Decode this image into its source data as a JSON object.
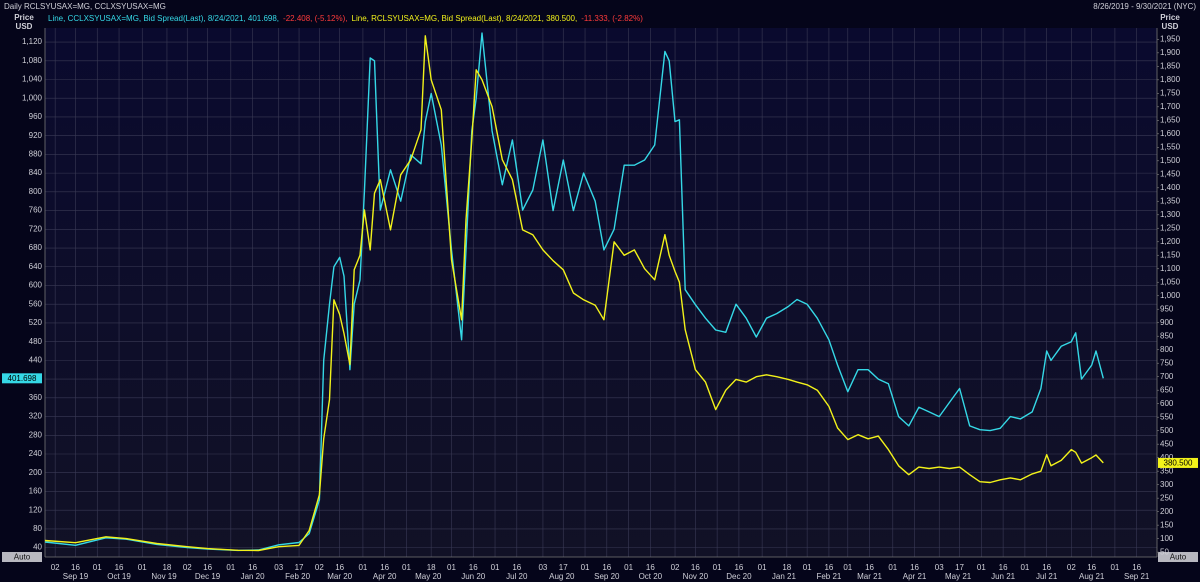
{
  "chart_data": {
    "type": "line",
    "title": "Daily RCLSYUSAX=MG, CCLXSYUSAX=MG",
    "subtitle": "8/26/2019 - 9/30/2021 (NYC)",
    "ylabel": [
      "Price",
      "USD"
    ],
    "y2label": [
      "Price",
      "USD"
    ],
    "scale_mode": [
      "Auto",
      "Auto"
    ],
    "grid": true,
    "xlim": [
      "2019-08-26",
      "2021-09-30"
    ],
    "ylim": [
      20,
      1150
    ],
    "y2lim": [
      32,
      1992
    ],
    "yticks": [
      40,
      80,
      120,
      160,
      200,
      240,
      280,
      320,
      360,
      400,
      440,
      480,
      520,
      560,
      600,
      640,
      680,
      720,
      760,
      800,
      840,
      880,
      920,
      960,
      {
        "value": 1000,
        "label": "1,000"
      },
      {
        "value": 1040,
        "label": "1,040"
      },
      {
        "value": 1080,
        "label": "1,080"
      },
      {
        "value": 1120,
        "label": "1,120"
      }
    ],
    "y2ticks": [
      50,
      100,
      150,
      200,
      250,
      300,
      350,
      400,
      450,
      500,
      550,
      600,
      650,
      700,
      750,
      800,
      850,
      900,
      950,
      {
        "value": 1000,
        "label": "1,000"
      },
      {
        "value": 1050,
        "label": "1,050"
      },
      {
        "value": 1100,
        "label": "1,100"
      },
      {
        "value": 1150,
        "label": "1,150"
      },
      {
        "value": 1200,
        "label": "1,200"
      },
      {
        "value": 1250,
        "label": "1,250"
      },
      {
        "value": 1300,
        "label": "1,300"
      },
      {
        "value": 1350,
        "label": "1,350"
      },
      {
        "value": 1400,
        "label": "1,400"
      },
      {
        "value": 1450,
        "label": "1,450"
      },
      {
        "value": 1500,
        "label": "1,500"
      },
      {
        "value": 1550,
        "label": "1,550"
      },
      {
        "value": 1600,
        "label": "1,600"
      },
      {
        "value": 1650,
        "label": "1,650"
      },
      {
        "value": 1700,
        "label": "1,700"
      },
      {
        "value": 1750,
        "label": "1,750"
      },
      {
        "value": 1800,
        "label": "1,800"
      },
      {
        "value": 1850,
        "label": "1,850"
      },
      {
        "value": 1900,
        "label": "1,900"
      },
      {
        "value": 1950,
        "label": "1,950"
      }
    ],
    "xticks": [
      {
        "value": "2019-09-02",
        "label": "02"
      },
      {
        "value": "2019-09-16",
        "label": "16"
      },
      {
        "value": "2019-10-01",
        "label": "01"
      },
      {
        "value": "2019-10-16",
        "label": "16"
      },
      {
        "value": "2019-11-01",
        "label": "01"
      },
      {
        "value": "2019-11-18",
        "label": "18"
      },
      {
        "value": "2019-12-02",
        "label": "02"
      },
      {
        "value": "2019-12-16",
        "label": "16"
      },
      {
        "value": "2020-01-01",
        "label": "01"
      },
      {
        "value": "2020-01-16",
        "label": "16"
      },
      {
        "value": "2020-02-03",
        "label": "03"
      },
      {
        "value": "2020-02-17",
        "label": "17"
      },
      {
        "value": "2020-03-02",
        "label": "02"
      },
      {
        "value": "2020-03-16",
        "label": "16"
      },
      {
        "value": "2020-04-01",
        "label": "01"
      },
      {
        "value": "2020-04-16",
        "label": "16"
      },
      {
        "value": "2020-05-01",
        "label": "01"
      },
      {
        "value": "2020-05-18",
        "label": "18"
      },
      {
        "value": "2020-06-01",
        "label": "01"
      },
      {
        "value": "2020-06-16",
        "label": "16"
      },
      {
        "value": "2020-07-01",
        "label": "01"
      },
      {
        "value": "2020-07-16",
        "label": "16"
      },
      {
        "value": "2020-08-03",
        "label": "03"
      },
      {
        "value": "2020-08-17",
        "label": "17"
      },
      {
        "value": "2020-09-01",
        "label": "01"
      },
      {
        "value": "2020-09-16",
        "label": "16"
      },
      {
        "value": "2020-10-01",
        "label": "01"
      },
      {
        "value": "2020-10-16",
        "label": "16"
      },
      {
        "value": "2020-11-02",
        "label": "02"
      },
      {
        "value": "2020-11-16",
        "label": "16"
      },
      {
        "value": "2020-12-01",
        "label": "01"
      },
      {
        "value": "2020-12-16",
        "label": "16"
      },
      {
        "value": "2021-01-01",
        "label": "01"
      },
      {
        "value": "2021-01-18",
        "label": "18"
      },
      {
        "value": "2021-02-01",
        "label": "01"
      },
      {
        "value": "2021-02-16",
        "label": "16"
      },
      {
        "value": "2021-03-01",
        "label": "01"
      },
      {
        "value": "2021-03-16",
        "label": "16"
      },
      {
        "value": "2021-04-01",
        "label": "01"
      },
      {
        "value": "2021-04-16",
        "label": "16"
      },
      {
        "value": "2021-05-03",
        "label": "03"
      },
      {
        "value": "2021-05-17",
        "label": "17"
      },
      {
        "value": "2021-06-01",
        "label": "01"
      },
      {
        "value": "2021-06-16",
        "label": "16"
      },
      {
        "value": "2021-07-01",
        "label": "01"
      },
      {
        "value": "2021-07-16",
        "label": "16"
      },
      {
        "value": "2021-08-02",
        "label": "02"
      },
      {
        "value": "2021-08-16",
        "label": "16"
      },
      {
        "value": "2021-09-01",
        "label": "01"
      },
      {
        "value": "2021-09-16",
        "label": "16"
      }
    ],
    "xmonths": [
      {
        "value": "2019-09-16",
        "label": "Sep 19"
      },
      {
        "value": "2019-10-16",
        "label": "Oct 19"
      },
      {
        "value": "2019-11-16",
        "label": "Nov 19"
      },
      {
        "value": "2019-12-16",
        "label": "Dec 19"
      },
      {
        "value": "2020-01-16",
        "label": "Jan 20"
      },
      {
        "value": "2020-02-16",
        "label": "Feb 20"
      },
      {
        "value": "2020-03-16",
        "label": "Mar 20"
      },
      {
        "value": "2020-04-16",
        "label": "Apr 20"
      },
      {
        "value": "2020-05-16",
        "label": "May 20"
      },
      {
        "value": "2020-06-16",
        "label": "Jun 20"
      },
      {
        "value": "2020-07-16",
        "label": "Jul 20"
      },
      {
        "value": "2020-08-16",
        "label": "Aug 20"
      },
      {
        "value": "2020-09-16",
        "label": "Sep 20"
      },
      {
        "value": "2020-10-16",
        "label": "Oct 20"
      },
      {
        "value": "2020-11-16",
        "label": "Nov 20"
      },
      {
        "value": "2020-12-16",
        "label": "Dec 20"
      },
      {
        "value": "2021-01-16",
        "label": "Jan 21"
      },
      {
        "value": "2021-02-16",
        "label": "Feb 21"
      },
      {
        "value": "2021-03-16",
        "label": "Mar 21"
      },
      {
        "value": "2021-04-16",
        "label": "Apr 21"
      },
      {
        "value": "2021-05-16",
        "label": "May 21"
      },
      {
        "value": "2021-06-16",
        "label": "Jun 21"
      },
      {
        "value": "2021-07-16",
        "label": "Jul 21"
      },
      {
        "value": "2021-08-16",
        "label": "Aug 21"
      },
      {
        "value": "2021-09-16",
        "label": "Sep 21"
      }
    ],
    "x": [
      "2019-08-26",
      "2019-09-16",
      "2019-10-07",
      "2019-10-21",
      "2019-11-11",
      "2019-12-02",
      "2019-12-16",
      "2020-01-06",
      "2020-01-20",
      "2020-02-03",
      "2020-02-17",
      "2020-02-24",
      "2020-03-02",
      "2020-03-05",
      "2020-03-09",
      "2020-03-12",
      "2020-03-16",
      "2020-03-19",
      "2020-03-23",
      "2020-03-26",
      "2020-03-30",
      "2020-04-02",
      "2020-04-06",
      "2020-04-09",
      "2020-04-13",
      "2020-04-20",
      "2020-04-27",
      "2020-05-04",
      "2020-05-11",
      "2020-05-14",
      "2020-05-18",
      "2020-05-25",
      "2020-06-01",
      "2020-06-08",
      "2020-06-11",
      "2020-06-15",
      "2020-06-18",
      "2020-06-22",
      "2020-06-29",
      "2020-07-06",
      "2020-07-13",
      "2020-07-20",
      "2020-07-27",
      "2020-08-03",
      "2020-08-10",
      "2020-08-17",
      "2020-08-24",
      "2020-08-31",
      "2020-09-08",
      "2020-09-14",
      "2020-09-21",
      "2020-09-28",
      "2020-10-05",
      "2020-10-12",
      "2020-10-19",
      "2020-10-26",
      "2020-10-29",
      "2020-11-02",
      "2020-11-05",
      "2020-11-09",
      "2020-11-16",
      "2020-11-23",
      "2020-11-30",
      "2020-12-07",
      "2020-12-14",
      "2020-12-21",
      "2020-12-28",
      "2021-01-04",
      "2021-01-11",
      "2021-01-19",
      "2021-01-25",
      "2021-02-01",
      "2021-02-08",
      "2021-02-16",
      "2021-02-22",
      "2021-03-01",
      "2021-03-08",
      "2021-03-15",
      "2021-03-22",
      "2021-03-29",
      "2021-04-05",
      "2021-04-12",
      "2021-04-19",
      "2021-04-26",
      "2021-05-03",
      "2021-05-10",
      "2021-05-17",
      "2021-05-24",
      "2021-05-31",
      "2021-06-07",
      "2021-06-14",
      "2021-06-21",
      "2021-06-28",
      "2021-07-06",
      "2021-07-12",
      "2021-07-16",
      "2021-07-19",
      "2021-07-26",
      "2021-08-02",
      "2021-08-05",
      "2021-08-09",
      "2021-08-16",
      "2021-08-19",
      "2021-08-24"
    ],
    "series": [
      {
        "legend": "Line, CCLXSYUSAX=MG, Bid Spread(Last), 8/24/2021, 401.698,",
        "change": "-22.408, (-5.12%),",
        "color": "#35d8e6",
        "change_color": "#ff3b3b",
        "last_label": "401.698",
        "axis": "y",
        "values": [
          52,
          45,
          61,
          58,
          47,
          40,
          37,
          34,
          35,
          46,
          51,
          70,
          142,
          440,
          560,
          640,
          660,
          620,
          420,
          560,
          612,
          800,
          1086,
          1080,
          761,
          847,
          780,
          879,
          860,
          950,
          1010,
          900,
          676,
          484,
          676,
          930,
          1000,
          1139,
          930,
          815,
          911,
          761,
          804,
          911,
          760,
          868,
          760,
          840,
          780,
          676,
          720,
          857,
          857,
          868,
          900,
          1100,
          1080,
          950,
          954,
          591,
          559,
          530,
          505,
          500,
          560,
          530,
          490,
          530,
          540,
          555,
          570,
          560,
          530,
          484,
          430,
          373,
          420,
          420,
          400,
          390,
          320,
          300,
          340,
          330,
          320,
          350,
          380,
          300,
          292,
          290,
          295,
          320,
          315,
          330,
          380,
          460,
          440,
          470,
          480,
          499,
          400,
          430,
          460,
          401.698
        ]
      },
      {
        "legend": "Line, RCLSYUSAX=MG, Bid Spread(Last), 8/24/2021, 380.500,",
        "change": "-11.333, (-2.82%)",
        "color": "#f2f21a",
        "change_color": "#ff3b3b",
        "last_label": "380.500",
        "axis": "y2",
        "values": [
          93,
          85,
          107,
          100,
          82,
          70,
          63,
          57,
          56,
          70,
          75,
          130,
          263,
          470,
          615,
          985,
          930,
          860,
          745,
          1096,
          1150,
          1318,
          1170,
          1380,
          1430,
          1244,
          1448,
          1504,
          1615,
          1963,
          1800,
          1689,
          1133,
          911,
          1281,
          1578,
          1837,
          1800,
          1700,
          1504,
          1430,
          1244,
          1226,
          1170,
          1130,
          1096,
          1010,
          985,
          965,
          911,
          1200,
          1150,
          1170,
          1100,
          1059,
          1226,
          1150,
          1090,
          1050,
          874,
          726,
          680,
          578,
          650,
          690,
          680,
          700,
          707,
          700,
          690,
          680,
          670,
          650,
          590,
          510,
          467,
          485,
          470,
          480,
          430,
          370,
          337,
          365,
          360,
          365,
          360,
          365,
          337,
          311,
          308,
          318,
          325,
          318,
          340,
          350,
          411,
          370,
          390,
          430,
          420,
          380,
          400,
          410,
          380.5
        ]
      }
    ]
  }
}
